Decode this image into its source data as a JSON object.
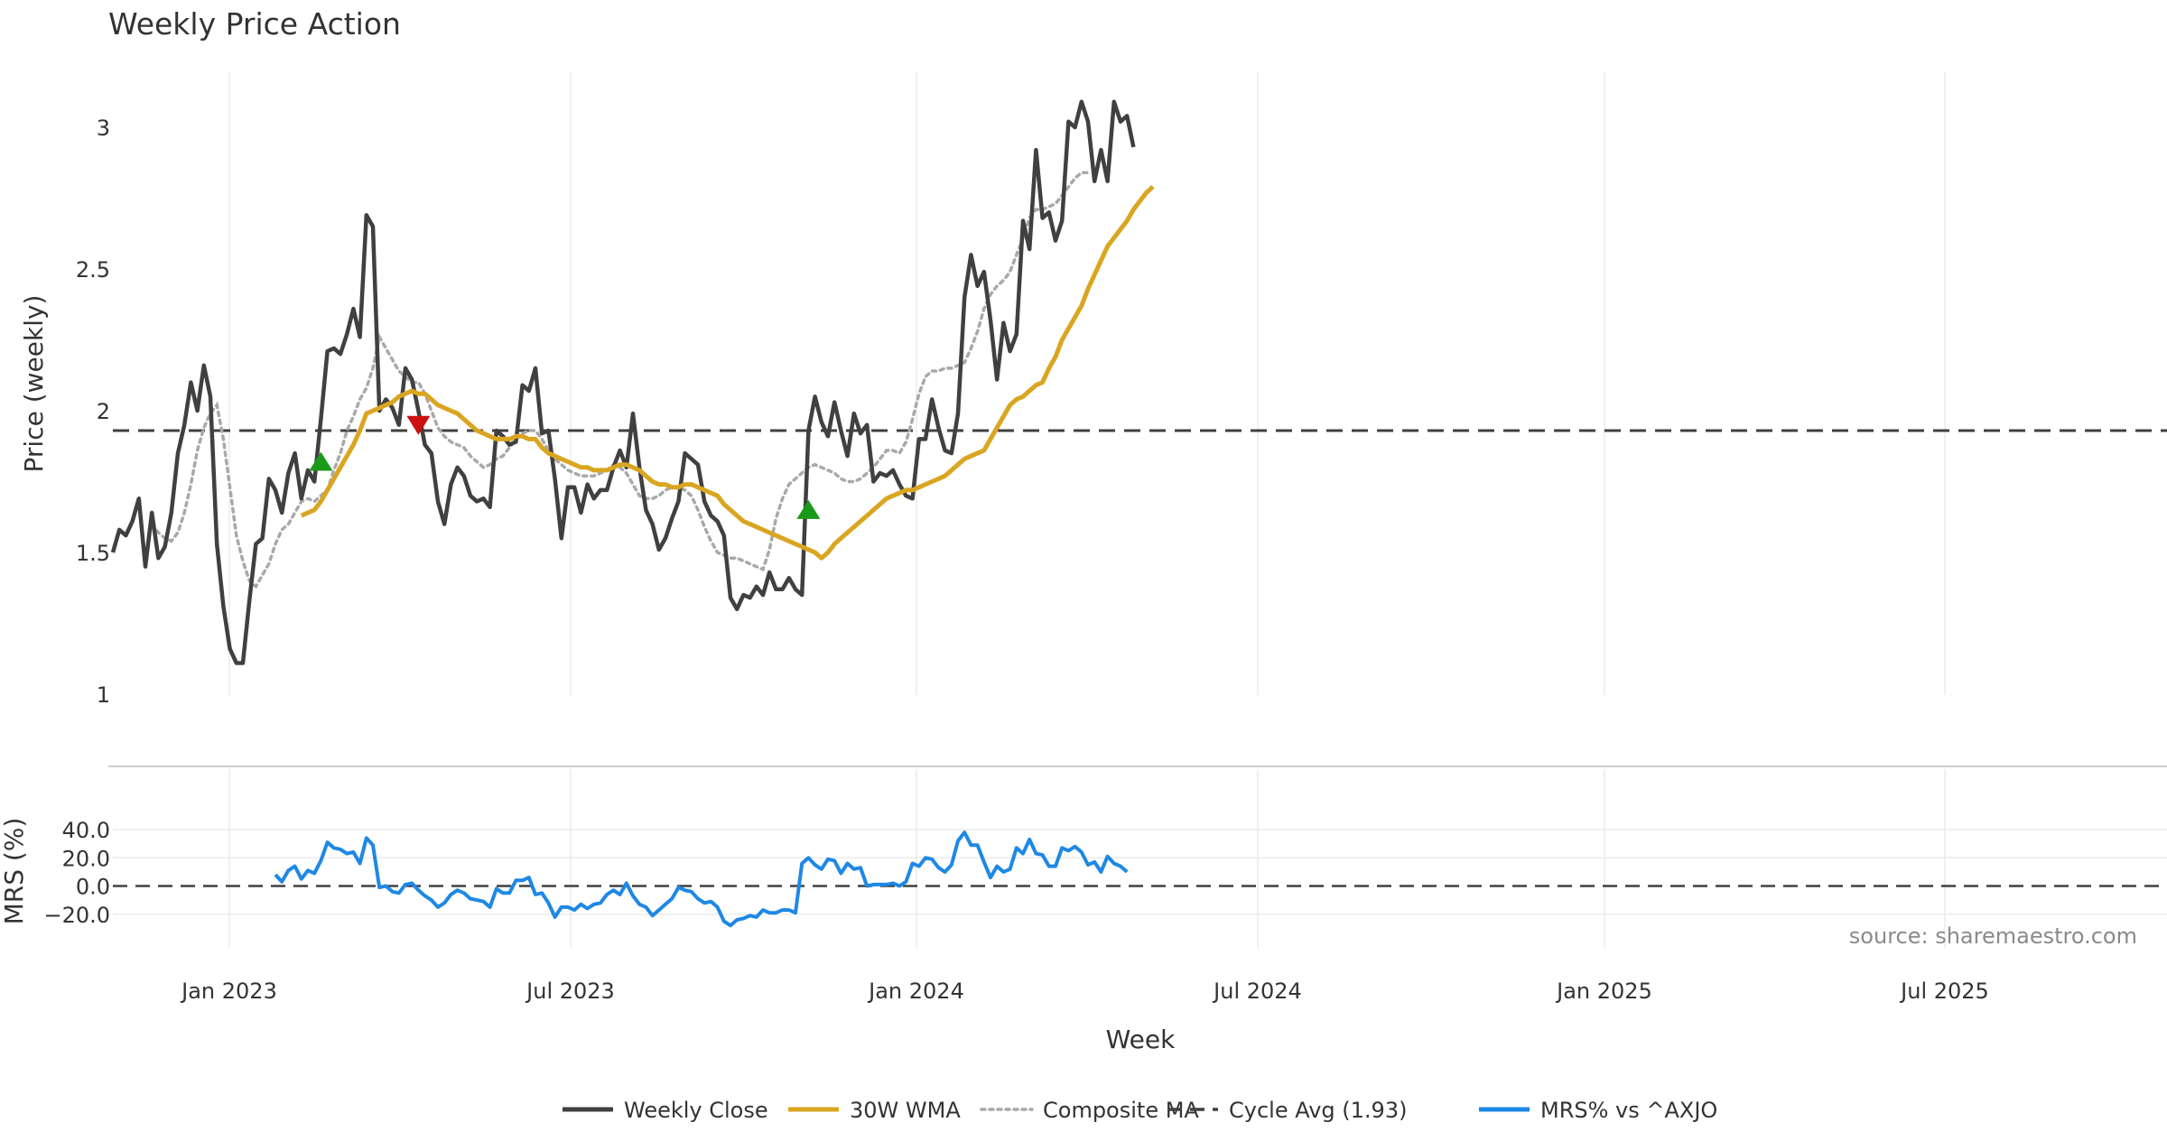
{
  "chart_data": {
    "type": "line",
    "title": "Weekly Price Action",
    "xlabel": "Week",
    "x_ticks": [
      "Jan 2023",
      "Jul 2023",
      "Jan 2024",
      "Jul 2024",
      "Jan 2025",
      "Jul 2025"
    ],
    "price_panel": {
      "ylabel": "Price (weekly)",
      "ylim": [
        1,
        3.2
      ],
      "y_ticks": [
        "1",
        "1.5",
        "2",
        "2.5",
        "3"
      ],
      "cycle_avg": 1.93,
      "weekly_close": [
        1.5,
        1.58,
        1.56,
        1.61,
        1.69,
        1.45,
        1.64,
        1.48,
        1.52,
        1.64,
        1.85,
        1.95,
        2.1,
        2.0,
        2.16,
        2.05,
        1.53,
        1.31,
        1.16,
        1.11,
        1.11,
        1.33,
        1.53,
        1.55,
        1.76,
        1.72,
        1.64,
        1.78,
        1.85,
        1.69,
        1.79,
        1.75,
        1.97,
        2.21,
        2.22,
        2.2,
        2.27,
        2.36,
        2.26,
        2.69,
        2.65,
        2.0,
        2.04,
        2.01,
        1.95,
        2.15,
        2.11,
        2.0,
        1.88,
        1.85,
        1.68,
        1.6,
        1.74,
        1.8,
        1.77,
        1.7,
        1.68,
        1.69,
        1.66,
        1.93,
        1.91,
        1.88,
        1.89,
        2.09,
        2.07,
        2.15,
        1.92,
        1.93,
        1.76,
        1.55,
        1.73,
        1.73,
        1.64,
        1.74,
        1.69,
        1.72,
        1.72,
        1.8,
        1.86,
        1.8,
        1.99,
        1.8,
        1.65,
        1.6,
        1.51,
        1.55,
        1.62,
        1.68,
        1.85,
        1.83,
        1.81,
        1.68,
        1.63,
        1.61,
        1.56,
        1.34,
        1.3,
        1.35,
        1.34,
        1.38,
        1.35,
        1.43,
        1.37,
        1.37,
        1.41,
        1.37,
        1.35,
        1.93,
        2.05,
        1.96,
        1.91,
        2.03,
        1.93,
        1.84,
        1.99,
        1.92,
        1.95,
        1.75,
        1.78,
        1.77,
        1.79,
        1.74,
        1.7,
        1.69,
        1.9,
        1.9,
        2.04,
        1.94,
        1.86,
        1.85,
        1.99,
        2.4,
        2.55,
        2.44,
        2.49,
        2.32,
        2.11,
        2.31,
        2.21,
        2.27,
        2.67,
        2.57,
        2.92,
        2.68,
        2.7,
        2.6,
        2.67,
        3.02,
        3.0,
        3.09,
        3.02,
        2.81,
        2.92,
        2.81,
        3.09,
        3.02,
        3.04,
        2.93
      ],
      "wma_30w": {
        "start_week": 29,
        "values": [
          1.63,
          1.64,
          1.65,
          1.68,
          1.72,
          1.76,
          1.8,
          1.84,
          1.88,
          1.93,
          1.99,
          2.0,
          2.01,
          2.02,
          2.03,
          2.05,
          2.06,
          2.07,
          2.06,
          2.06,
          2.04,
          2.02,
          2.01,
          2.0,
          1.99,
          1.97,
          1.95,
          1.93,
          1.92,
          1.91,
          1.9,
          1.9,
          1.9,
          1.91,
          1.91,
          1.9,
          1.9,
          1.87,
          1.85,
          1.84,
          1.83,
          1.82,
          1.81,
          1.8,
          1.8,
          1.79,
          1.79,
          1.79,
          1.8,
          1.81,
          1.81,
          1.8,
          1.79,
          1.77,
          1.75,
          1.74,
          1.74,
          1.73,
          1.73,
          1.74,
          1.74,
          1.73,
          1.72,
          1.71,
          1.7,
          1.67,
          1.65,
          1.63,
          1.61,
          1.6,
          1.59,
          1.58,
          1.57,
          1.56,
          1.55,
          1.54,
          1.53,
          1.52,
          1.51,
          1.5,
          1.48,
          1.5,
          1.53,
          1.55,
          1.57,
          1.59,
          1.61,
          1.63,
          1.65,
          1.67,
          1.69,
          1.7,
          1.71,
          1.72,
          1.72,
          1.73,
          1.74,
          1.75,
          1.76,
          1.77,
          1.79,
          1.81,
          1.83,
          1.84,
          1.85,
          1.86,
          1.9,
          1.94,
          1.98,
          2.02,
          2.04,
          2.05,
          2.07,
          2.09,
          2.1,
          2.15,
          2.19,
          2.25,
          2.29,
          2.33,
          2.37,
          2.43,
          2.48,
          2.53,
          2.58,
          2.61,
          2.64,
          2.67,
          2.71,
          2.74,
          2.77,
          2.79
        ]
      },
      "composite_ma": {
        "start_week": 6,
        "values": [
          1.6,
          1.57,
          1.55,
          1.54,
          1.57,
          1.64,
          1.74,
          1.86,
          1.94,
          1.99,
          2.02,
          1.9,
          1.73,
          1.56,
          1.47,
          1.4,
          1.38,
          1.42,
          1.46,
          1.53,
          1.58,
          1.6,
          1.64,
          1.68,
          1.69,
          1.68,
          1.7,
          1.72,
          1.79,
          1.85,
          1.93,
          1.98,
          2.04,
          2.08,
          2.15,
          2.26,
          2.22,
          2.18,
          2.14,
          2.12,
          2.1,
          2.1,
          2.06,
          2.0,
          1.94,
          1.91,
          1.89,
          1.88,
          1.87,
          1.84,
          1.82,
          1.8,
          1.81,
          1.83,
          1.84,
          1.87,
          1.9,
          1.92,
          1.93,
          1.93,
          1.9,
          1.86,
          1.83,
          1.81,
          1.79,
          1.78,
          1.77,
          1.77,
          1.77,
          1.78,
          1.79,
          1.81,
          1.8,
          1.78,
          1.74,
          1.7,
          1.69,
          1.69,
          1.7,
          1.72,
          1.73,
          1.73,
          1.72,
          1.7,
          1.65,
          1.59,
          1.54,
          1.5,
          1.49,
          1.48,
          1.48,
          1.47,
          1.46,
          1.45,
          1.44,
          1.51,
          1.62,
          1.69,
          1.74,
          1.76,
          1.78,
          1.8,
          1.81,
          1.8,
          1.79,
          1.78,
          1.76,
          1.75,
          1.75,
          1.76,
          1.78,
          1.8,
          1.83,
          1.86,
          1.86,
          1.85,
          1.89,
          1.97,
          2.06,
          2.12,
          2.14,
          2.14,
          2.15,
          2.15,
          2.16,
          2.17,
          2.22,
          2.28,
          2.36,
          2.41,
          2.44,
          2.46,
          2.49,
          2.55,
          2.61,
          2.68,
          2.71,
          2.71,
          2.72,
          2.73,
          2.76,
          2.79,
          2.82,
          2.84,
          2.84
        ]
      },
      "signals": [
        {
          "type": "buy",
          "week": 32,
          "value": 1.82
        },
        {
          "type": "sell",
          "week": 47,
          "value": 1.95
        },
        {
          "type": "buy",
          "week": 107,
          "value": 1.65
        }
      ]
    },
    "mrs_panel": {
      "ylabel": "MRS (%)",
      "ylim": [
        -30,
        45
      ],
      "y_ticks": [
        "40.0",
        "20.0",
        "0.0",
        "−20.0"
      ],
      "zero_line": 0,
      "mrs_vs_axjo": {
        "start_week": 25,
        "values": [
          8,
          3,
          11,
          14,
          5,
          11,
          9,
          18,
          31,
          27,
          26,
          23,
          24,
          16,
          34,
          29,
          -1,
          0,
          -4,
          -5,
          1,
          2,
          -3,
          -7,
          -10,
          -15,
          -12,
          -6,
          -3,
          -5,
          -9,
          -10,
          -11,
          -15,
          -2,
          -5,
          -5,
          4,
          4,
          6,
          -6,
          -5,
          -12,
          -22,
          -15,
          -15,
          -17,
          -13,
          -16,
          -13,
          -12,
          -6,
          -3,
          -6,
          2,
          -7,
          -13,
          -15,
          -21,
          -17,
          -13,
          -9,
          -1,
          -3,
          -4,
          -9,
          -12,
          -11,
          -15,
          -25,
          -28,
          -24,
          -23,
          -21,
          -22,
          -17,
          -19,
          -19,
          -17,
          -17,
          -19,
          16,
          20,
          15,
          12,
          19,
          18,
          9,
          16,
          12,
          13,
          0,
          1,
          1,
          1,
          2,
          0,
          3,
          16,
          14,
          20,
          19,
          13,
          10,
          15,
          32,
          38,
          29,
          29,
          17,
          6,
          14,
          10,
          12,
          27,
          23,
          33,
          23,
          22,
          14,
          14,
          27,
          25,
          28,
          24,
          15,
          17,
          10,
          21,
          16,
          14,
          10
        ]
      }
    },
    "annotation": "source: sharemaestro.com",
    "legend": {
      "placement": "bottom-center",
      "items": [
        {
          "label": "Weekly Close",
          "color": "#404040",
          "style": "solid"
        },
        {
          "label": "30W WMA",
          "color": "#DAA520",
          "style": "solid"
        },
        {
          "label": "Composite MA",
          "color": "#A9A9A9",
          "style": "dotted"
        },
        {
          "label": "Cycle Avg (1.93)",
          "color": "#404040",
          "style": "dashed"
        },
        {
          "label": "MRS% vs ^AXJO",
          "color": "#1E88E5",
          "style": "solid"
        }
      ]
    },
    "colors": {
      "close": "#404040",
      "wma": "#DAA520",
      "composite": "#A9A9A9",
      "cycle": "#404040",
      "mrs": "#1E88E5",
      "buy": "#1a9a1a",
      "sell": "#cc1111",
      "grid": "#ebebeb",
      "text": "#333333",
      "annotation": "#8a8a8a"
    }
  }
}
